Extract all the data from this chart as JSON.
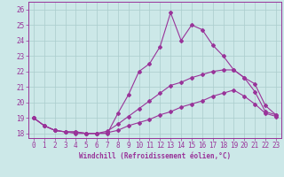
{
  "background_color": "#cce8e8",
  "line_color": "#993399",
  "grid_color": "#aacccc",
  "xlabel": "Windchill (Refroidissement éolien,°C)",
  "xlabel_fontsize": 5.5,
  "tick_fontsize": 5.5,
  "xlim": [
    -0.5,
    23.5
  ],
  "ylim": [
    17.7,
    26.5
  ],
  "yticks": [
    18,
    19,
    20,
    21,
    22,
    23,
    24,
    25,
    26
  ],
  "xticks": [
    0,
    1,
    2,
    3,
    4,
    5,
    6,
    7,
    8,
    9,
    10,
    11,
    12,
    13,
    14,
    15,
    16,
    17,
    18,
    19,
    20,
    21,
    22,
    23
  ],
  "series1_x": [
    0,
    1,
    2,
    3,
    4,
    5,
    6,
    7,
    8,
    9,
    10,
    11,
    12,
    13,
    14,
    15,
    16,
    17,
    18,
    19,
    20,
    21,
    22,
    23
  ],
  "series1_y": [
    19.0,
    18.5,
    18.2,
    18.1,
    18.1,
    18.0,
    18.0,
    18.0,
    19.3,
    20.5,
    22.0,
    22.5,
    23.6,
    25.8,
    24.0,
    25.0,
    24.7,
    23.7,
    23.0,
    22.1,
    21.6,
    20.7,
    19.4,
    19.2
  ],
  "series2_x": [
    0,
    1,
    2,
    3,
    4,
    5,
    6,
    7,
    8,
    9,
    10,
    11,
    12,
    13,
    14,
    15,
    16,
    17,
    18,
    19,
    20,
    21,
    22,
    23
  ],
  "series2_y": [
    19.0,
    18.5,
    18.2,
    18.1,
    18.1,
    18.0,
    18.0,
    18.15,
    18.6,
    19.1,
    19.6,
    20.1,
    20.6,
    21.1,
    21.3,
    21.6,
    21.8,
    22.0,
    22.1,
    22.1,
    21.6,
    21.2,
    19.8,
    19.2
  ],
  "series3_x": [
    0,
    1,
    2,
    3,
    4,
    5,
    6,
    7,
    8,
    9,
    10,
    11,
    12,
    13,
    14,
    15,
    16,
    17,
    18,
    19,
    20,
    21,
    22,
    23
  ],
  "series3_y": [
    19.0,
    18.5,
    18.2,
    18.1,
    18.0,
    18.0,
    18.0,
    18.05,
    18.2,
    18.5,
    18.7,
    18.9,
    19.2,
    19.4,
    19.7,
    19.9,
    20.1,
    20.4,
    20.6,
    20.8,
    20.4,
    19.9,
    19.3,
    19.1
  ]
}
